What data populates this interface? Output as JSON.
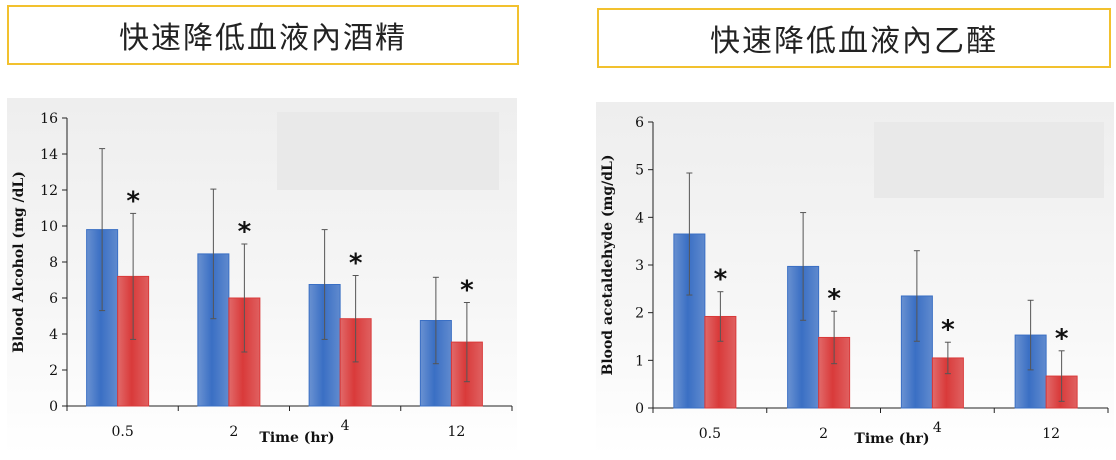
{
  "titles": {
    "left": "快速降低血液內酒精",
    "right": "快速降低血液內乙醛"
  },
  "colors": {
    "series_blue": "#3a6fc4",
    "series_red": "#d93a3a",
    "title_border": "#f2c12e"
  },
  "chart_data": [
    {
      "type": "bar",
      "title": "",
      "xlabel": "Time (hr)",
      "ylabel": "Blood Alcohol (mg /dL)",
      "categories": [
        "0.5",
        "2",
        "4",
        "12"
      ],
      "ylim": [
        0,
        16
      ],
      "yticks": [
        0,
        2,
        4,
        6,
        8,
        10,
        12,
        14,
        16
      ],
      "series": [
        {
          "values": [
            9.8,
            8.45,
            6.75,
            4.75
          ],
          "errors": [
            4.5,
            3.6,
            3.05,
            2.4
          ]
        },
        {
          "values": [
            7.2,
            6.0,
            4.85,
            3.55
          ],
          "errors": [
            3.5,
            3.0,
            2.4,
            2.2
          ]
        }
      ],
      "annotations": [
        "*",
        "*",
        "*",
        "*"
      ],
      "grid": false,
      "legend": "none"
    },
    {
      "type": "bar",
      "title": "",
      "xlabel": "Time (hr)",
      "ylabel": "Blood acetaldehyde (mg/dL)",
      "categories": [
        "0.5",
        "2",
        "4",
        "12"
      ],
      "ylim": [
        0,
        6
      ],
      "yticks": [
        0,
        1,
        2,
        3,
        4,
        5,
        6
      ],
      "series": [
        {
          "values": [
            3.65,
            2.97,
            2.35,
            1.53
          ],
          "errors": [
            1.28,
            1.13,
            0.95,
            0.73
          ]
        },
        {
          "values": [
            1.92,
            1.48,
            1.05,
            0.67
          ],
          "errors": [
            0.52,
            0.55,
            0.33,
            0.53
          ]
        }
      ],
      "annotations": [
        "*",
        "*",
        "*",
        "*"
      ],
      "grid": false,
      "legend": "none"
    }
  ]
}
